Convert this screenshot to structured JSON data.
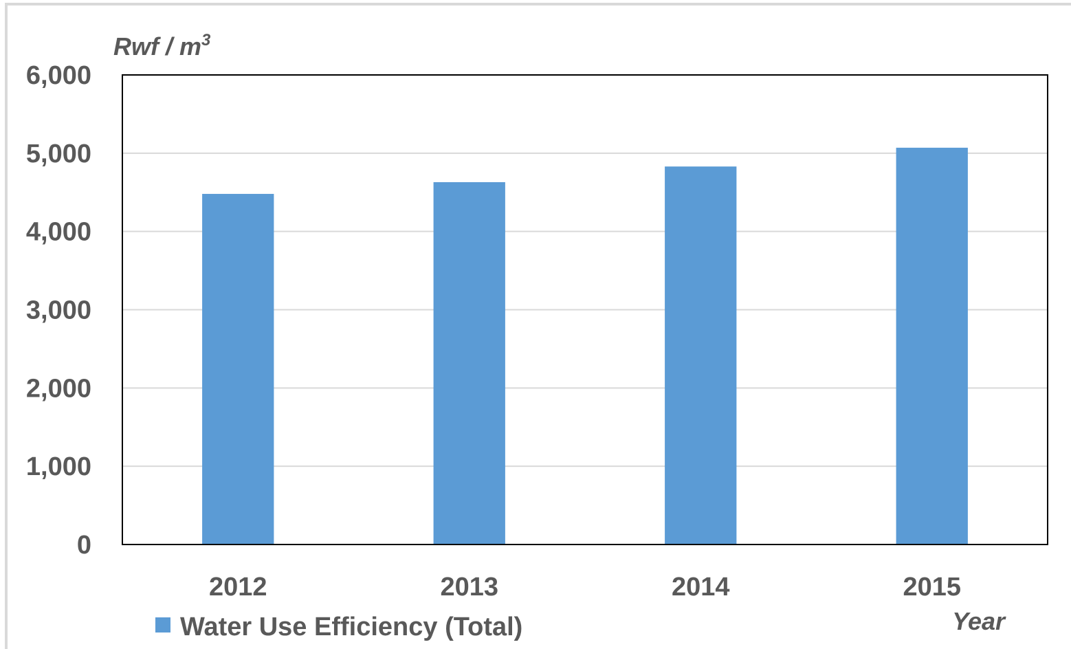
{
  "chart_data": {
    "type": "bar",
    "title": "",
    "ylabel": "Rwf / m",
    "ylabel_superscript": "3",
    "xlabel": "Year",
    "categories": [
      "2012",
      "2013",
      "2014",
      "2015"
    ],
    "series": [
      {
        "name": "Water Use Efficiency (Total)",
        "values": [
          4480,
          4630,
          4830,
          5070
        ],
        "color": "#5b9bd5"
      }
    ],
    "ylim": [
      0,
      6000
    ],
    "yticks": [
      0,
      1000,
      2000,
      3000,
      4000,
      5000,
      6000
    ],
    "ytick_labels": [
      "0",
      "1,000",
      "2,000",
      "3,000",
      "4,000",
      "5,000",
      "6,000"
    ],
    "grid": true,
    "gridline_color": "#d9d9d9",
    "axis_color": "#000000",
    "text_color": "#595959",
    "legend_position": "bottom-left"
  }
}
